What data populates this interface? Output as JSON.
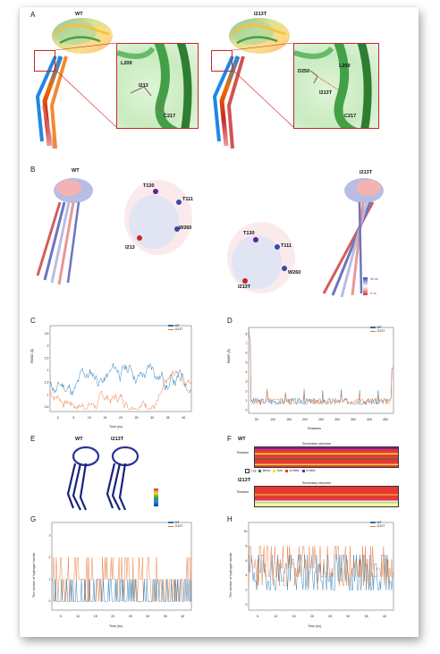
{
  "panels": {
    "a": {
      "label": "A",
      "titles": [
        "WT",
        "I213T"
      ],
      "wt_residues": [
        "L209",
        "I213",
        "C217"
      ],
      "mut_residues": [
        "D250",
        "L209",
        "I213T",
        "C217"
      ]
    },
    "b": {
      "label": "B",
      "titles": [
        "WT",
        "I213T"
      ],
      "wt_residues": [
        "T130",
        "T111",
        "W260",
        "I213"
      ],
      "mut_residues": [
        "T130",
        "T111",
        "W260",
        "I213T"
      ],
      "time_scale": [
        "40 ns",
        "0 ns"
      ],
      "colors": {
        "start": "#d32f2f",
        "end": "#3949ab"
      }
    },
    "c": {
      "label": "C",
      "ylabel": "RMSD (Å)",
      "xlabel": "Time (ns)",
      "xticks": [
        "0",
        "5",
        "10",
        "15",
        "20",
        "25",
        "30",
        "35",
        "40"
      ],
      "yticks": [
        "0.5",
        "1",
        "1.5",
        "2",
        "2.5",
        "3",
        "3.5"
      ]
    },
    "d": {
      "label": "D",
      "ylabel": "RMSF (Å)",
      "xlabel": "Residues",
      "xticks": [
        "50",
        "100",
        "150",
        "200",
        "250",
        "300",
        "350",
        "400",
        "450"
      ],
      "yticks": [
        "0",
        "1",
        "2",
        "3",
        "4",
        "5",
        "6",
        "7",
        "8"
      ]
    },
    "e": {
      "label": "E",
      "titles": [
        "WT",
        "I213T"
      ]
    },
    "f": {
      "label": "F",
      "wt_title": "WT",
      "mut_title": "I213T",
      "chart_title": "Secondary structure",
      "ylabel": "Residue",
      "legend_items": [
        "Coil",
        "Bend",
        "Turn",
        "A-Helix",
        "3-Helix"
      ],
      "legend_colors": [
        "#ffffff",
        "#2e7d32",
        "#fdd835",
        "#e53935",
        "#7b1fa2"
      ]
    },
    "g": {
      "label": "G",
      "ylabel": "The number of hydrogen bonds",
      "xlabel": "Time (ns)",
      "xticks": [
        "5",
        "10",
        "15",
        "20",
        "25",
        "30",
        "35",
        "40"
      ],
      "yticks": [
        "0",
        "1",
        "2",
        "3"
      ]
    },
    "h": {
      "label": "H",
      "ylabel": "The number of hydrogen bonds",
      "xlabel": "Time (ns)",
      "xticks": [
        "5",
        "10",
        "15",
        "20",
        "25",
        "30",
        "35",
        "40"
      ],
      "yticks": [
        "0",
        "2",
        "4",
        "6",
        "8",
        "10"
      ]
    }
  },
  "legend": {
    "series": [
      {
        "name": "WT",
        "color": "#1f77b4"
      },
      {
        "name": "I213T",
        "color": "#e8702a"
      }
    ]
  }
}
